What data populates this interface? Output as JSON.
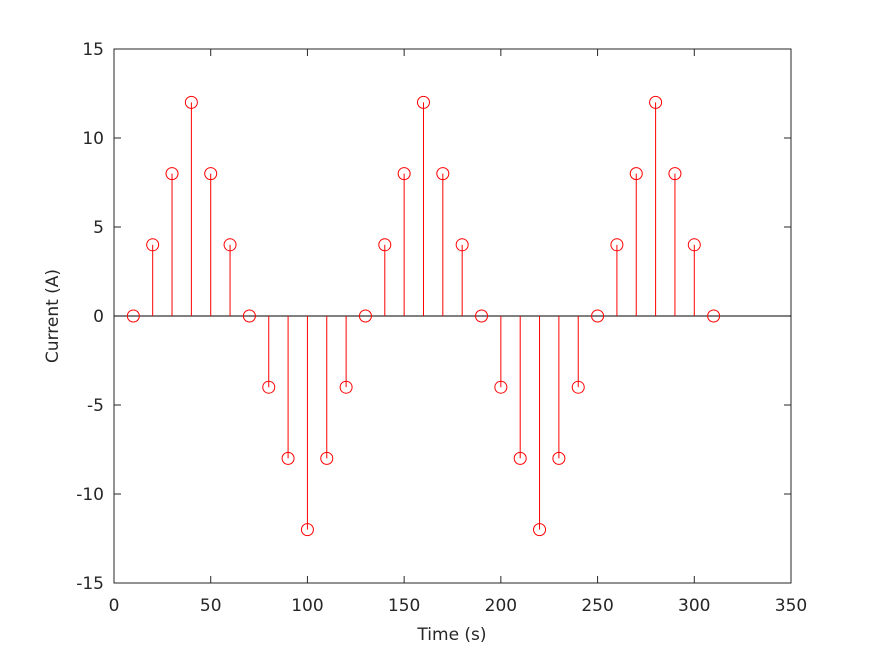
{
  "chart_data": {
    "type": "stem",
    "xlabel": "Time (s)",
    "ylabel": "Current (A)",
    "x": [
      10,
      20,
      30,
      40,
      50,
      60,
      70,
      80,
      90,
      100,
      110,
      120,
      130,
      140,
      150,
      160,
      170,
      180,
      190,
      200,
      210,
      220,
      230,
      240,
      250,
      260,
      270,
      280,
      290,
      300,
      310
    ],
    "values": [
      0,
      4,
      8,
      12,
      8,
      4,
      0,
      -4,
      -8,
      -12,
      -8,
      -4,
      0,
      4,
      8,
      12,
      8,
      4,
      0,
      -4,
      -8,
      -12,
      -8,
      -4,
      0,
      4,
      8,
      12,
      8,
      4,
      0
    ],
    "color": "#ff0000",
    "xlim": [
      0,
      350
    ],
    "xticks": [
      0,
      50,
      100,
      150,
      200,
      250,
      300,
      350
    ],
    "ylim": [
      -15,
      15
    ],
    "yticks": [
      -15,
      -10,
      -5,
      0,
      5,
      10,
      15
    ]
  }
}
